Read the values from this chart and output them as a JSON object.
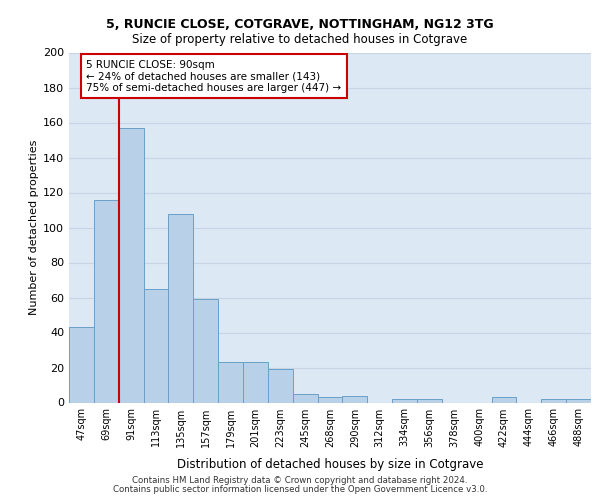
{
  "title_line1": "5, RUNCIE CLOSE, COTGRAVE, NOTTINGHAM, NG12 3TG",
  "title_line2": "Size of property relative to detached houses in Cotgrave",
  "xlabel": "Distribution of detached houses by size in Cotgrave",
  "ylabel": "Number of detached properties",
  "categories": [
    "47sqm",
    "69sqm",
    "91sqm",
    "113sqm",
    "135sqm",
    "157sqm",
    "179sqm",
    "201sqm",
    "223sqm",
    "245sqm",
    "268sqm",
    "290sqm",
    "312sqm",
    "334sqm",
    "356sqm",
    "378sqm",
    "400sqm",
    "422sqm",
    "444sqm",
    "466sqm",
    "488sqm"
  ],
  "values": [
    43,
    116,
    157,
    65,
    108,
    59,
    23,
    23,
    19,
    5,
    3,
    4,
    0,
    2,
    2,
    0,
    0,
    3,
    0,
    2,
    2
  ],
  "bar_color": "#b8d0e8",
  "bar_edge_color": "#6aa0c8",
  "grid_color": "#c8d4e4",
  "background_color": "#dce8f4",
  "vline_x": 1.5,
  "vline_color": "#cc0000",
  "annotation_text": "5 RUNCIE CLOSE: 90sqm\n← 24% of detached houses are smaller (143)\n75% of semi-detached houses are larger (447) →",
  "annotation_box_color": "#cc0000",
  "ylim": [
    0,
    200
  ],
  "yticks": [
    0,
    20,
    40,
    60,
    80,
    100,
    120,
    140,
    160,
    180,
    200
  ],
  "footer_line1": "Contains HM Land Registry data © Crown copyright and database right 2024.",
  "footer_line2": "Contains public sector information licensed under the Open Government Licence v3.0."
}
